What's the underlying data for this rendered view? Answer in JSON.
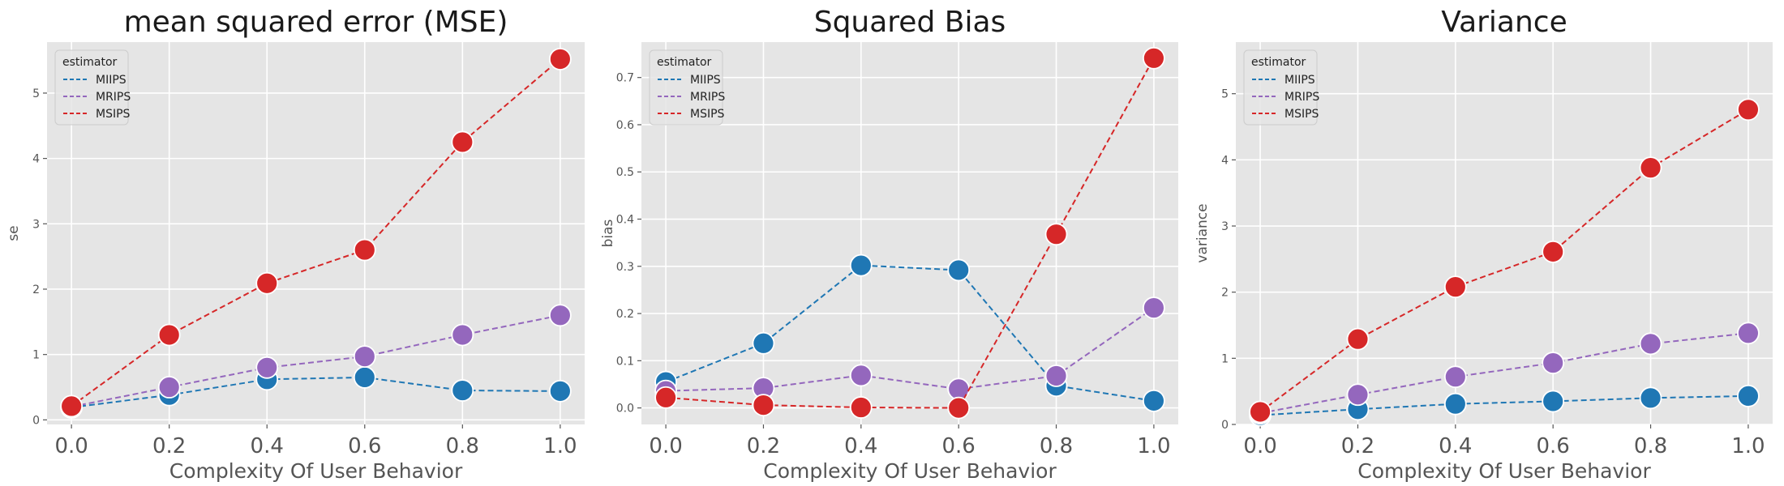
{
  "chart_data": [
    {
      "type": "line",
      "title": "mean squared error (MSE)",
      "xlabel": "Complexity Of User Behavior",
      "ylabel": "se",
      "x": [
        0.0,
        0.2,
        0.4,
        0.6,
        0.8,
        1.0
      ],
      "xticks": [
        "0.0",
        "0.2",
        "0.4",
        "0.6",
        "0.8",
        "1.0"
      ],
      "xlim": [
        -0.05,
        1.05
      ],
      "ylim": [
        -0.07,
        5.78
      ],
      "yticks": [
        "0",
        "1",
        "2",
        "3",
        "4",
        "5"
      ],
      "grid": true,
      "legend": {
        "title": "estimator",
        "placement": "top-left"
      },
      "series": [
        {
          "name": "MIIPS",
          "color": "#1f77b4",
          "values": [
            0.19,
            0.38,
            0.62,
            0.65,
            0.45,
            0.44
          ]
        },
        {
          "name": "MRIPS",
          "color": "#9467bd",
          "values": [
            0.2,
            0.5,
            0.8,
            0.97,
            1.3,
            1.6
          ]
        },
        {
          "name": "MSIPS",
          "color": "#d62728",
          "values": [
            0.21,
            1.3,
            2.09,
            2.6,
            4.25,
            5.52
          ]
        }
      ]
    },
    {
      "type": "line",
      "title": "Squared Bias",
      "xlabel": "Complexity Of User Behavior",
      "ylabel": "bias",
      "x": [
        0.0,
        0.2,
        0.4,
        0.6,
        0.8,
        1.0
      ],
      "xticks": [
        "0.0",
        "0.2",
        "0.4",
        "0.6",
        "0.8",
        "1.0"
      ],
      "xlim": [
        -0.05,
        1.05
      ],
      "ylim": [
        -0.035,
        0.775
      ],
      "yticks": [
        "0.0",
        "0.1",
        "0.2",
        "0.3",
        "0.4",
        "0.5",
        "0.6",
        "0.7"
      ],
      "grid": true,
      "legend": {
        "title": "estimator",
        "placement": "top-left"
      },
      "series": [
        {
          "name": "MIIPS",
          "color": "#1f77b4",
          "values": [
            0.055,
            0.137,
            0.302,
            0.292,
            0.047,
            0.015
          ]
        },
        {
          "name": "MRIPS",
          "color": "#9467bd",
          "values": [
            0.036,
            0.042,
            0.069,
            0.04,
            0.068,
            0.212
          ]
        },
        {
          "name": "MSIPS",
          "color": "#d62728",
          "values": [
            0.022,
            0.006,
            0.001,
            0.0,
            0.368,
            0.741
          ]
        }
      ]
    },
    {
      "type": "line",
      "title": "Variance",
      "xlabel": "Complexity Of User Behavior",
      "ylabel": "variance",
      "x": [
        0.0,
        0.2,
        0.4,
        0.6,
        0.8,
        1.0
      ],
      "xticks": [
        "0.0",
        "0.2",
        "0.4",
        "0.6",
        "0.8",
        "1.0"
      ],
      "xlim": [
        -0.05,
        1.05
      ],
      "ylim": [
        0.0,
        5.78
      ],
      "yticks": [
        "0",
        "1",
        "2",
        "3",
        "4",
        "5"
      ],
      "grid": true,
      "legend": {
        "title": "estimator",
        "placement": "top-left"
      },
      "series": [
        {
          "name": "MIIPS",
          "color": "#1f77b4",
          "values": [
            0.14,
            0.23,
            0.31,
            0.35,
            0.4,
            0.43
          ]
        },
        {
          "name": "MRIPS",
          "color": "#9467bd",
          "values": [
            0.17,
            0.45,
            0.72,
            0.93,
            1.22,
            1.38
          ]
        },
        {
          "name": "MSIPS",
          "color": "#d62728",
          "values": [
            0.19,
            1.29,
            2.08,
            2.61,
            3.88,
            4.76
          ]
        }
      ]
    }
  ]
}
